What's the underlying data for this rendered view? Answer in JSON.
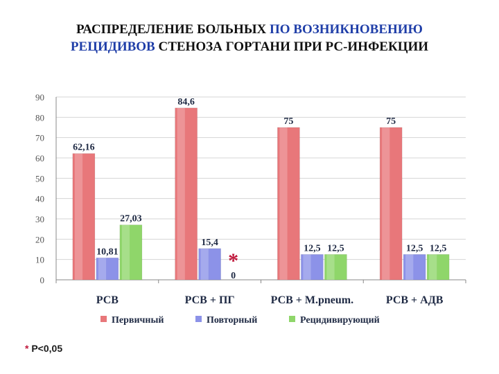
{
  "title": {
    "line1_black": "РАСПРЕДЕЛЕНИЕ БОЛЬНЫХ ",
    "line1_blue": "ПО ВОЗНИКНОВЕНИЮ",
    "line2_blue": "РЕЦИДИВОВ ",
    "line2_black": " СТЕНОЗА ГОРТАНИ ПРИ РС-ИНФЕКЦИИ"
  },
  "footnote": {
    "mark": "*",
    "text": " P<0,05"
  },
  "colors": {
    "primary": "#e8777a",
    "repeat": "#8c92e8",
    "recurring": "#8fd66a",
    "significance": "#c0183c"
  },
  "chart_data": {
    "type": "bar",
    "ylim": [
      0,
      90
    ],
    "yticks": [
      0,
      10,
      20,
      30,
      40,
      50,
      60,
      70,
      80,
      90
    ],
    "grid": true,
    "legend_position": "bottom",
    "categories": [
      "РСВ",
      "РСВ + ПГ",
      "РСВ + M.pneum.",
      "РСВ + АДВ"
    ],
    "series": [
      {
        "name": "Первичный",
        "values": [
          62.16,
          84.6,
          75,
          75
        ],
        "labels": [
          "62,16",
          "84,6",
          "75",
          "75"
        ]
      },
      {
        "name": "Повторный",
        "values": [
          10.81,
          15.4,
          12.5,
          12.5
        ],
        "labels": [
          "10,81",
          "15,4",
          "12,5",
          "12,5"
        ]
      },
      {
        "name": "Рецидивирующий",
        "values": [
          27.03,
          0,
          12.5,
          12.5
        ],
        "labels": [
          "27,03",
          "0",
          "12,5",
          "12,5"
        ]
      }
    ],
    "annotation": {
      "text": "*",
      "category_index": 1
    }
  }
}
